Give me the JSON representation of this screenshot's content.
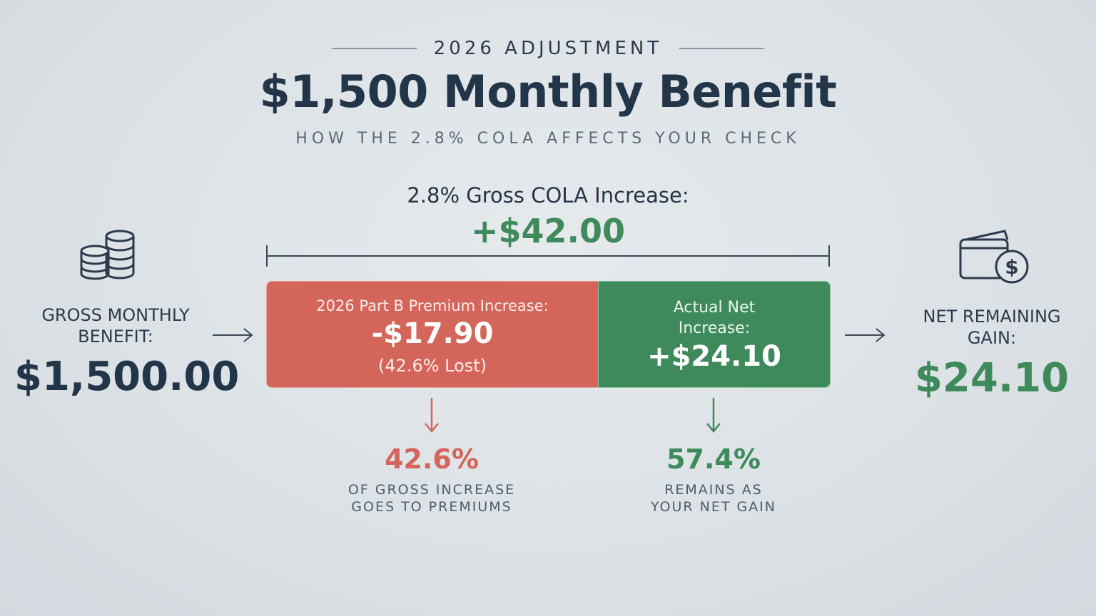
{
  "header": {
    "eyebrow": "2026 ADJUSTMENT",
    "title": "$1,500 Monthly Benefit",
    "subtitle": "HOW THE 2.8% COLA AFFECTS YOUR CHECK"
  },
  "cola": {
    "label": "2.8% Gross COLA Increase:",
    "value": "+$42.00"
  },
  "gross": {
    "icon": "coins-stack-icon",
    "label_line1": "GROSS MONTHLY",
    "label_line2": "BENEFIT:",
    "value": "$1,500.00"
  },
  "premium": {
    "label": "2026 Part B Premium Increase:",
    "value": "-$17.90",
    "note": "(42.6% Lost)",
    "color": "#d4655a",
    "share": 0.426
  },
  "net_increase": {
    "label_line1": "Actual Net",
    "label_line2": "Increase:",
    "value": "+$24.10",
    "color": "#3e8a5b",
    "share": 0.574
  },
  "net": {
    "icon": "wallet-dollar-icon",
    "label_line1": "NET REMAINING",
    "label_line2": "GAIN:",
    "value": "$24.10"
  },
  "breakdown": {
    "premium_pct": "42.6%",
    "premium_desc_line1": "OF GROSS INCREASE",
    "premium_desc_line2": "GOES TO PREMIUMS",
    "net_pct": "57.4%",
    "net_desc_line1": "REMAINS AS",
    "net_desc_line2": "YOUR NET GAIN"
  }
}
